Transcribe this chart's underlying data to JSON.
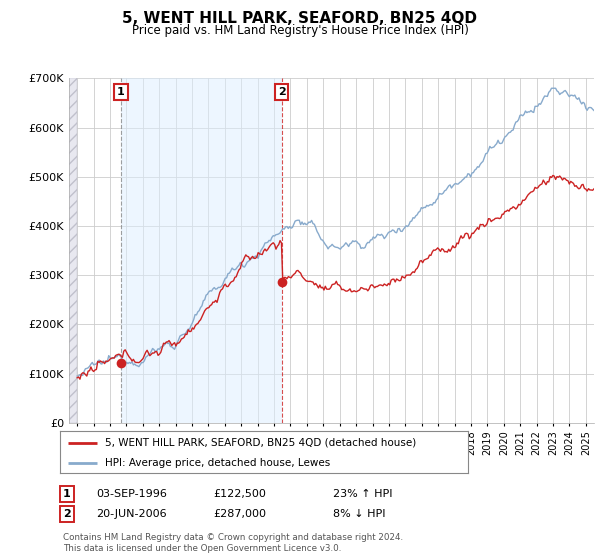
{
  "title": "5, WENT HILL PARK, SEAFORD, BN25 4QD",
  "subtitle": "Price paid vs. HM Land Registry's House Price Index (HPI)",
  "legend_line1": "5, WENT HILL PARK, SEAFORD, BN25 4QD (detached house)",
  "legend_line2": "HPI: Average price, detached house, Lewes",
  "sale1_label": "1",
  "sale1_date": "03-SEP-1996",
  "sale1_price": "£122,500",
  "sale1_hpi": "23% ↑ HPI",
  "sale1_year": 1996.67,
  "sale1_value": 122500,
  "sale2_label": "2",
  "sale2_date": "20-JUN-2006",
  "sale2_price": "£287,000",
  "sale2_hpi": "8% ↓ HPI",
  "sale2_year": 2006.47,
  "sale2_value": 287000,
  "footnote": "Contains HM Land Registry data © Crown copyright and database right 2024.\nThis data is licensed under the Open Government Licence v3.0.",
  "red_color": "#cc2222",
  "blue_color": "#88aacc",
  "grid_color": "#cccccc",
  "shade_color": "#ddeeff",
  "hatch_color": "#bbbbcc",
  "ylim_min": 0,
  "ylim_max": 700000,
  "xlim_min": 1993.5,
  "xlim_max": 2025.5
}
